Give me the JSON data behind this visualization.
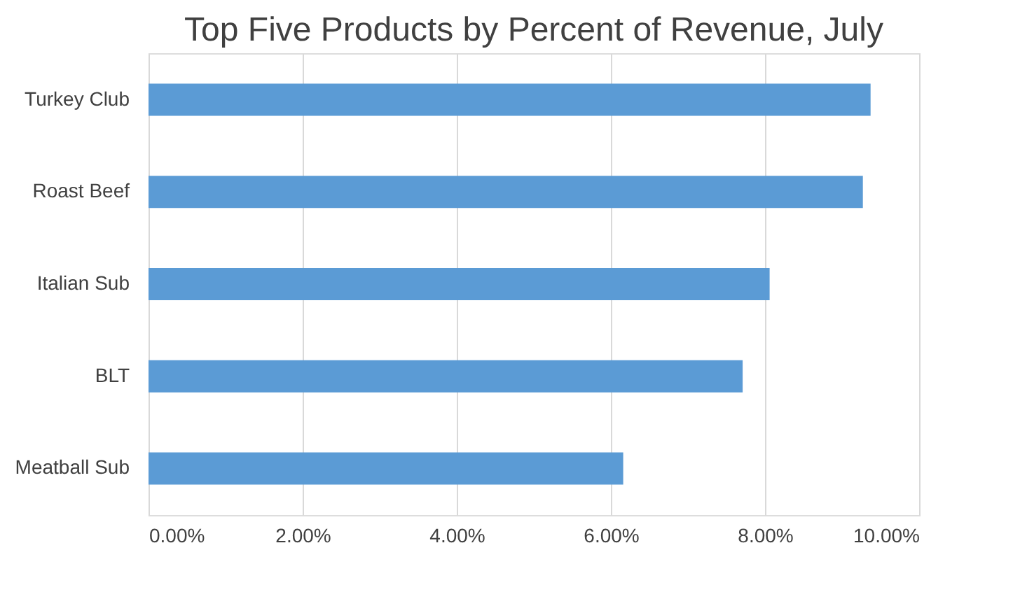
{
  "chart_data": {
    "type": "bar",
    "orientation": "horizontal",
    "title": "Top Five Products by Percent of Revenue, July",
    "categories": [
      "Turkey Club",
      "Roast Beef",
      "Italian Sub",
      "BLT",
      "Meatball Sub"
    ],
    "values": [
      9.37,
      9.27,
      8.06,
      7.71,
      6.16
    ],
    "color": "#5b9bd5",
    "xlim": [
      0,
      10
    ],
    "xticks": [
      {
        "value": 0,
        "label": "0.00%"
      },
      {
        "value": 2,
        "label": "2.00%"
      },
      {
        "value": 4,
        "label": "4.00%"
      },
      {
        "value": 6,
        "label": "6.00%"
      },
      {
        "value": 8,
        "label": "8.00%"
      },
      {
        "value": 10,
        "label": "10.00%"
      }
    ],
    "grid": "x"
  }
}
